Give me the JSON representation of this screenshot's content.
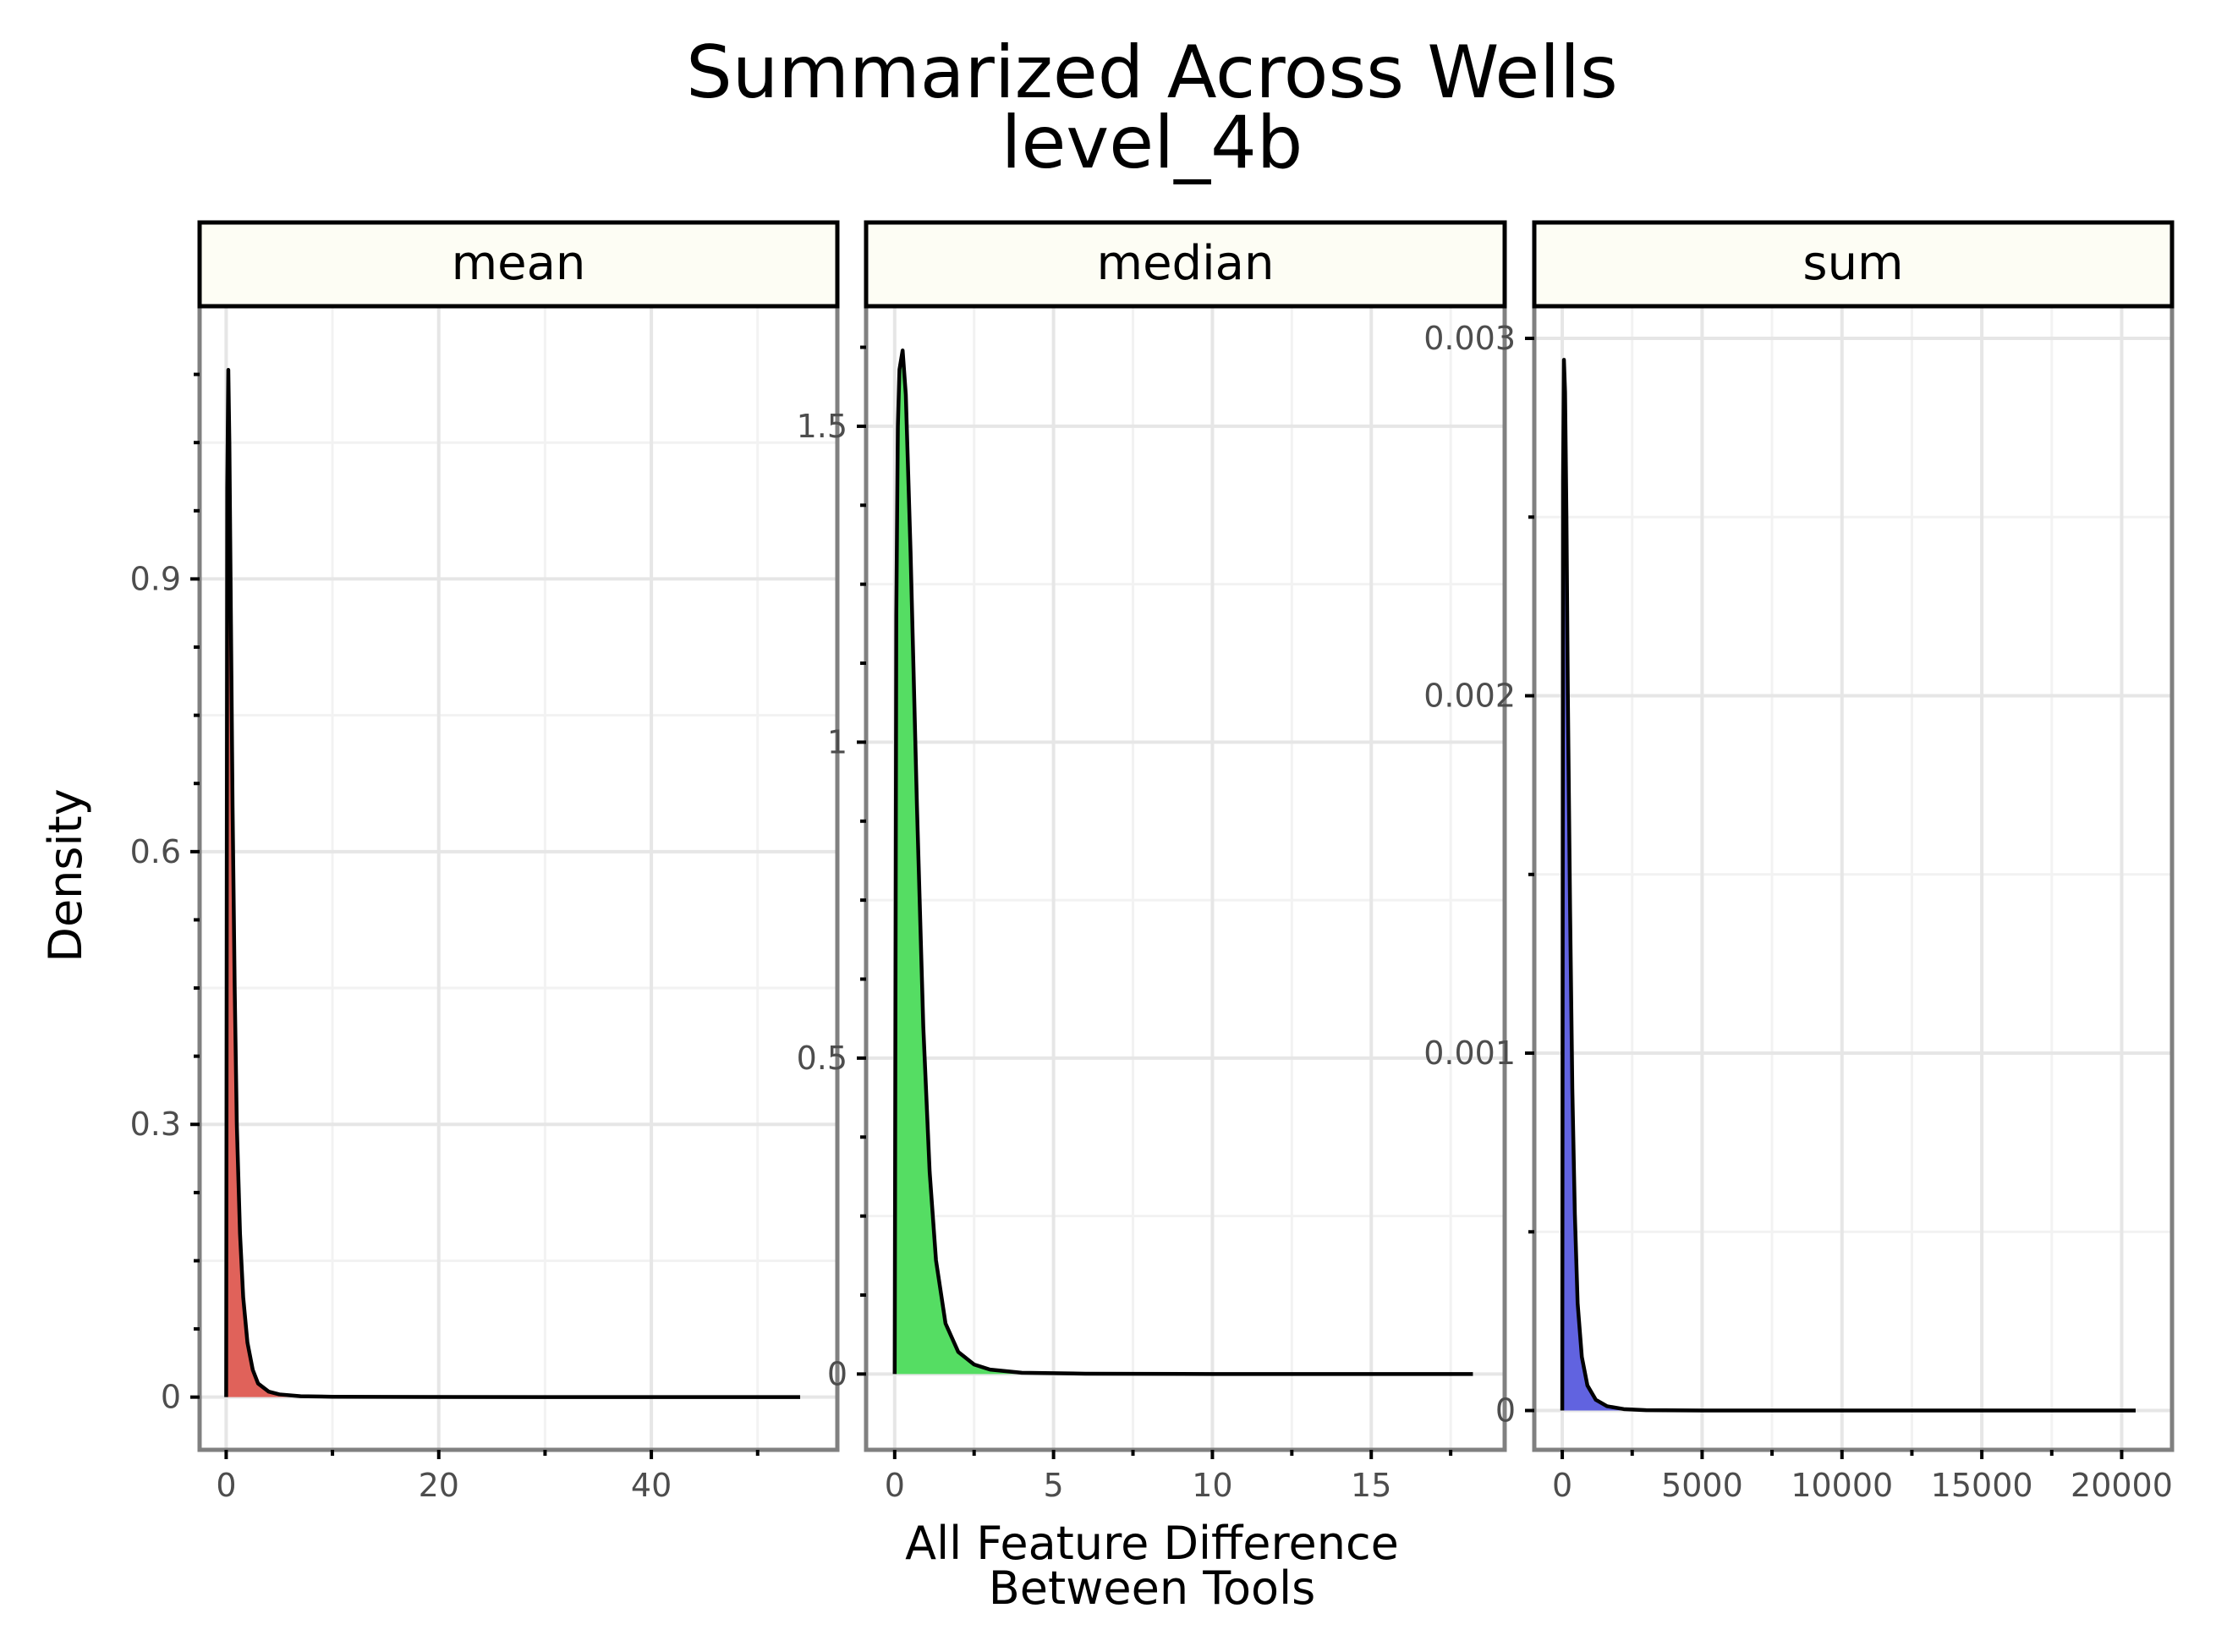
{
  "title_line1": "Summarized Across Wells",
  "title_line2": "level_4b",
  "xlabel_line1": "All Feature Difference",
  "xlabel_line2": "Between Tools",
  "ylabel": "Density",
  "colors": {
    "mean": "#e0625a",
    "median": "#55dd63",
    "sum": "#6163e0"
  },
  "chart_data": {
    "type": "area",
    "title": "Summarized Across Wells level_4b",
    "xlabel": "All Feature Difference Between Tools",
    "ylabel": "Density",
    "facets": [
      {
        "name": "mean",
        "xlim": [
          -2.5,
          57.5
        ],
        "ylim": [
          -0.058,
          1.2
        ],
        "xticks": [
          0,
          20,
          40
        ],
        "xtick_labels": [
          "0",
          "20",
          "40"
        ],
        "yticks": [
          0,
          0.3,
          0.6,
          0.9
        ],
        "ytick_labels": [
          "0",
          "0.3",
          "0.6",
          "0.9"
        ],
        "x": [
          0,
          0.1,
          0.2,
          0.3,
          0.45,
          0.6,
          0.8,
          1.0,
          1.3,
          1.6,
          2.0,
          2.5,
          3.0,
          4.0,
          5.0,
          7.0,
          10.0,
          20.0,
          30.0,
          40.0,
          54.0
        ],
        "density": [
          0.0,
          1.0,
          1.13,
          1.05,
          0.85,
          0.65,
          0.45,
          0.3,
          0.18,
          0.11,
          0.06,
          0.03,
          0.015,
          0.006,
          0.003,
          0.001,
          0.0004,
          0.0001,
          0.0,
          0.0,
          0.0
        ]
      },
      {
        "name": "median",
        "xlim": [
          -0.9,
          19.2
        ],
        "ylim": [
          -0.12,
          1.69
        ],
        "xticks": [
          0,
          5,
          10,
          15
        ],
        "xtick_labels": [
          "0",
          "5",
          "10",
          "15"
        ],
        "yticks": [
          0,
          0.5,
          1,
          1.5
        ],
        "ytick_labels": [
          "0",
          "0.5",
          "1",
          "1.5"
        ],
        "x": [
          0,
          0.05,
          0.1,
          0.15,
          0.25,
          0.35,
          0.5,
          0.7,
          0.9,
          1.1,
          1.3,
          1.6,
          2.0,
          2.5,
          3.0,
          4.0,
          6.0,
          10.0,
          18.2
        ],
        "density": [
          0.0,
          1.2,
          1.5,
          1.59,
          1.62,
          1.55,
          1.3,
          0.9,
          0.55,
          0.32,
          0.18,
          0.08,
          0.035,
          0.015,
          0.007,
          0.002,
          0.0005,
          0.0,
          0.0
        ]
      },
      {
        "name": "sum",
        "xlim": [
          -1000,
          21800
        ],
        "ylim": [
          -0.00011,
          0.00309
        ],
        "xticks": [
          0,
          5000,
          10000,
          15000,
          20000
        ],
        "xtick_labels": [
          "0",
          "5000",
          "10000",
          "15000",
          "20000"
        ],
        "yticks": [
          0,
          0.001,
          0.002,
          0.003
        ],
        "ytick_labels": [
          "0",
          "0.001",
          "0.002",
          "0.003"
        ],
        "x": [
          0,
          30,
          60,
          100,
          150,
          200,
          280,
          360,
          450,
          550,
          700,
          900,
          1200,
          1600,
          2200,
          3000,
          5000,
          10000,
          20500
        ],
        "density": [
          0.0,
          0.0026,
          0.00294,
          0.00285,
          0.0025,
          0.002,
          0.0014,
          0.0009,
          0.00055,
          0.0003,
          0.00015,
          7e-05,
          3e-05,
          1.2e-05,
          4e-06,
          1e-06,
          0.0,
          0.0,
          0.0
        ]
      }
    ]
  }
}
